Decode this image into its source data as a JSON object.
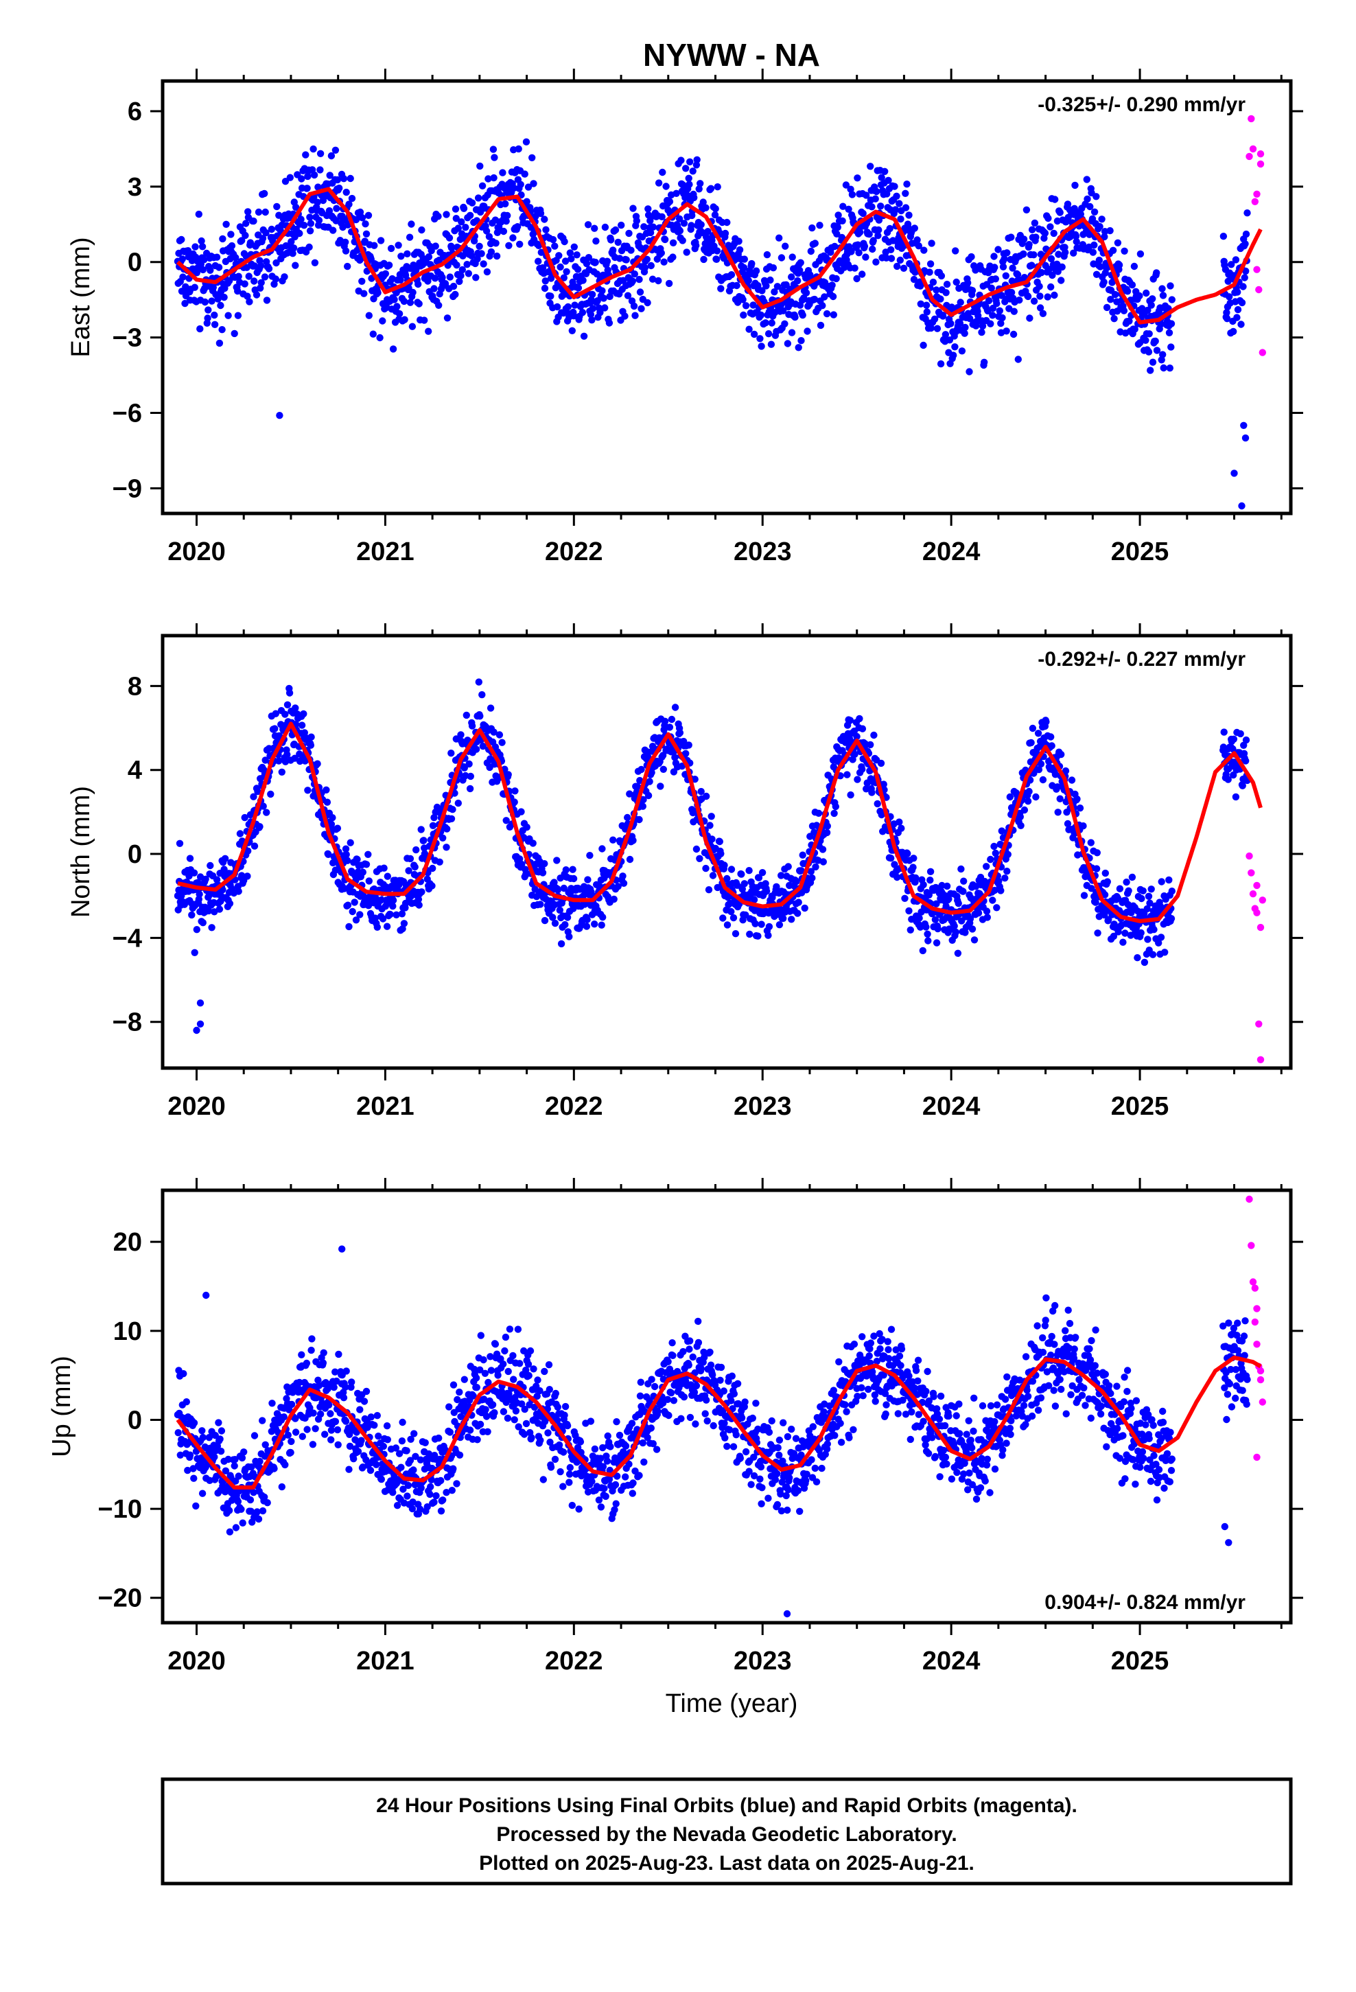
{
  "title": "NYWW - NA",
  "xlabel": "Time (year)",
  "caption": [
    "24 Hour Positions Using Final Orbits (blue) and Rapid Orbits (magenta).",
    "Processed by the Nevada Geodetic Laboratory.",
    "Plotted on 2025-Aug-23. Last data on 2025-Aug-21."
  ],
  "colors": {
    "final": "#0000ff",
    "rapid": "#ff00ff",
    "model": "#ff0000",
    "frame": "#000000"
  },
  "chart_data": [
    {
      "type": "scatter",
      "ylabel": "East (mm)",
      "rate_label": "-0.325+/- 0.290 mm/yr",
      "rate_position": "top-right",
      "xlim": [
        2019.82,
        2025.8
      ],
      "ylim": [
        -10.0,
        7.2
      ],
      "xticks": [
        2020,
        2021,
        2022,
        2023,
        2024,
        2025
      ],
      "xtick_labels": [
        "2020",
        "2021",
        "2022",
        "2023",
        "2024",
        "2025"
      ],
      "yticks": [
        -9,
        -6,
        -3,
        0,
        3,
        6
      ],
      "ytick_labels": [
        "−9",
        "−6",
        "−3",
        "0",
        "3",
        "6"
      ],
      "model": {
        "t": [
          2019.9,
          2020.0,
          2020.1,
          2020.2,
          2020.3,
          2020.4,
          2020.5,
          2020.6,
          2020.7,
          2020.8,
          2020.9,
          2021.0,
          2021.1,
          2021.2,
          2021.3,
          2021.4,
          2021.5,
          2021.6,
          2021.7,
          2021.8,
          2021.9,
          2022.0,
          2022.1,
          2022.2,
          2022.3,
          2022.4,
          2022.5,
          2022.6,
          2022.7,
          2022.8,
          2022.9,
          2023.0,
          2023.1,
          2023.2,
          2023.3,
          2023.4,
          2023.5,
          2023.6,
          2023.7,
          2023.8,
          2023.9,
          2024.0,
          2024.1,
          2024.2,
          2024.3,
          2024.4,
          2024.5,
          2024.6,
          2024.7,
          2024.8,
          2024.9,
          2025.0,
          2025.1,
          2025.2,
          2025.3,
          2025.4,
          2025.5,
          2025.6,
          2025.64
        ],
        "v": [
          0.0,
          -0.7,
          -0.8,
          -0.3,
          0.2,
          0.5,
          1.5,
          2.7,
          2.9,
          2.0,
          0.0,
          -1.2,
          -0.9,
          -0.4,
          -0.1,
          0.5,
          1.5,
          2.5,
          2.6,
          1.4,
          -0.5,
          -1.4,
          -1.0,
          -0.6,
          -0.3,
          0.5,
          1.7,
          2.3,
          1.8,
          0.5,
          -0.9,
          -1.8,
          -1.5,
          -1.0,
          -0.6,
          0.4,
          1.5,
          2.0,
          1.7,
          0.2,
          -1.5,
          -2.1,
          -1.7,
          -1.3,
          -1.0,
          -0.8,
          0.2,
          1.2,
          1.7,
          0.8,
          -1.2,
          -2.4,
          -2.3,
          -1.8,
          -1.5,
          -1.3,
          -0.9,
          0.7,
          1.3
        ]
      },
      "scatter": {
        "amp": 2.0,
        "spread": 1.6
      },
      "rapid": {
        "t": [
          2025.58,
          2025.59,
          2025.6,
          2025.61,
          2025.62,
          2025.62,
          2025.63,
          2025.64,
          2025.64,
          2025.65
        ],
        "v": [
          4.2,
          5.7,
          4.5,
          2.4,
          2.7,
          -0.3,
          -1.1,
          4.3,
          3.9,
          -3.6
        ]
      },
      "outliers": {
        "t": [
          2020.44,
          2025.5,
          2025.54,
          2025.56,
          2025.55
        ],
        "v": [
          -6.1,
          -8.4,
          -9.7,
          -7.0,
          -6.5
        ]
      }
    },
    {
      "type": "scatter",
      "ylabel": "North (mm)",
      "rate_label": "-0.292+/- 0.227 mm/yr",
      "rate_position": "top-right",
      "xlim": [
        2019.82,
        2025.8
      ],
      "ylim": [
        -10.2,
        10.4
      ],
      "xticks": [
        2020,
        2021,
        2022,
        2023,
        2024,
        2025
      ],
      "xtick_labels": [
        "2020",
        "2021",
        "2022",
        "2023",
        "2024",
        "2025"
      ],
      "yticks": [
        -8,
        -4,
        0,
        4,
        8
      ],
      "ytick_labels": [
        "−8",
        "−4",
        "0",
        "4",
        "8"
      ],
      "model": {
        "t": [
          2019.9,
          2020.0,
          2020.1,
          2020.2,
          2020.3,
          2020.4,
          2020.5,
          2020.6,
          2020.7,
          2020.8,
          2020.9,
          2021.0,
          2021.1,
          2021.2,
          2021.3,
          2021.4,
          2021.5,
          2021.6,
          2021.7,
          2021.8,
          2021.9,
          2022.0,
          2022.1,
          2022.2,
          2022.3,
          2022.4,
          2022.5,
          2022.6,
          2022.7,
          2022.8,
          2022.9,
          2023.0,
          2023.1,
          2023.2,
          2023.3,
          2023.4,
          2023.5,
          2023.6,
          2023.7,
          2023.8,
          2023.9,
          2024.0,
          2024.1,
          2024.2,
          2024.3,
          2024.4,
          2024.5,
          2024.6,
          2024.7,
          2024.8,
          2024.9,
          2025.0,
          2025.1,
          2025.2,
          2025.3,
          2025.4,
          2025.5,
          2025.6,
          2025.64
        ],
        "v": [
          -1.4,
          -1.6,
          -1.7,
          -1.0,
          1.5,
          4.5,
          6.2,
          4.5,
          1.0,
          -1.2,
          -1.8,
          -1.9,
          -1.9,
          -1.0,
          1.6,
          4.5,
          5.9,
          4.4,
          1.0,
          -1.4,
          -2.0,
          -2.2,
          -2.2,
          -1.3,
          1.3,
          4.3,
          5.7,
          4.2,
          0.6,
          -1.6,
          -2.3,
          -2.5,
          -2.4,
          -1.6,
          1.0,
          4.0,
          5.4,
          3.9,
          0.3,
          -2.0,
          -2.6,
          -2.8,
          -2.7,
          -1.8,
          0.8,
          3.7,
          5.1,
          3.6,
          0.1,
          -2.2,
          -3.0,
          -3.2,
          -3.1,
          -2.0,
          0.8,
          3.9,
          4.8,
          3.4,
          2.2
        ]
      },
      "scatter": {
        "amp": 1.5,
        "spread": 1.3
      },
      "rapid": {
        "t": [
          2025.58,
          2025.59,
          2025.6,
          2025.61,
          2025.62,
          2025.62,
          2025.63,
          2025.64,
          2025.64,
          2025.65
        ],
        "v": [
          -0.1,
          -0.9,
          -1.9,
          -2.6,
          -1.5,
          -2.8,
          -8.1,
          -9.8,
          -3.5,
          -2.2
        ]
      },
      "outliers": {
        "t": [
          2020.02,
          2020.02,
          2020.0,
          2019.99
        ],
        "v": [
          -7.1,
          -8.1,
          -8.4,
          -4.7
        ]
      }
    },
    {
      "type": "scatter",
      "ylabel": "Up (mm)",
      "rate_label": "0.904+/- 0.824 mm/yr",
      "rate_position": "bottom-right",
      "xlim": [
        2019.82,
        2025.8
      ],
      "ylim": [
        -22.8,
        25.8
      ],
      "xticks": [
        2020,
        2021,
        2022,
        2023,
        2024,
        2025
      ],
      "xtick_labels": [
        "2020",
        "2021",
        "2022",
        "2023",
        "2024",
        "2025"
      ],
      "yticks": [
        -20,
        -10,
        0,
        10,
        20
      ],
      "ytick_labels": [
        "−20",
        "−10",
        "0",
        "10",
        "20"
      ],
      "model": {
        "t": [
          2019.9,
          2020.0,
          2020.1,
          2020.2,
          2020.3,
          2020.4,
          2020.5,
          2020.6,
          2020.7,
          2020.8,
          2020.9,
          2021.0,
          2021.1,
          2021.2,
          2021.3,
          2021.4,
          2021.5,
          2021.6,
          2021.7,
          2021.8,
          2021.9,
          2022.0,
          2022.1,
          2022.2,
          2022.3,
          2022.4,
          2022.5,
          2022.6,
          2022.7,
          2022.8,
          2022.9,
          2023.0,
          2023.1,
          2023.2,
          2023.3,
          2023.4,
          2023.5,
          2023.6,
          2023.7,
          2023.8,
          2023.9,
          2024.0,
          2024.1,
          2024.2,
          2024.3,
          2024.4,
          2024.5,
          2024.6,
          2024.7,
          2024.8,
          2024.9,
          2025.0,
          2025.1,
          2025.2,
          2025.3,
          2025.4,
          2025.5,
          2025.6,
          2025.64
        ],
        "v": [
          0.0,
          -2.8,
          -5.4,
          -7.6,
          -7.6,
          -3.8,
          0.5,
          3.4,
          2.5,
          0.8,
          -2.0,
          -4.6,
          -6.6,
          -6.8,
          -5.3,
          -0.9,
          2.8,
          4.3,
          3.7,
          2.0,
          -0.6,
          -3.6,
          -5.8,
          -6.2,
          -4.0,
          1.0,
          4.5,
          5.2,
          4.0,
          1.6,
          -1.3,
          -4.0,
          -5.6,
          -5.1,
          -2.2,
          2.0,
          5.5,
          6.1,
          5.0,
          2.5,
          -0.5,
          -3.5,
          -4.4,
          -3.0,
          0.5,
          4.5,
          6.8,
          6.5,
          5.0,
          3.2,
          0.5,
          -2.8,
          -3.5,
          -2.0,
          2.0,
          5.5,
          7.0,
          6.5,
          6.0
        ]
      },
      "scatter": {
        "amp": 4.5,
        "spread": 4.0
      },
      "rapid": {
        "t": [
          2025.58,
          2025.59,
          2025.6,
          2025.61,
          2025.62,
          2025.62,
          2025.63,
          2025.64,
          2025.64,
          2025.65,
          2025.62,
          2025.61
        ],
        "v": [
          24.8,
          19.6,
          15.5,
          14.8,
          12.5,
          8.5,
          6.0,
          5.5,
          4.5,
          2.0,
          -4.2,
          11.0
        ]
      },
      "outliers": {
        "t": [
          2023.13,
          2020.77,
          2020.05,
          2025.45,
          2025.47
        ],
        "v": [
          -21.8,
          19.2,
          14.0,
          -12.0,
          -13.8
        ]
      }
    }
  ]
}
